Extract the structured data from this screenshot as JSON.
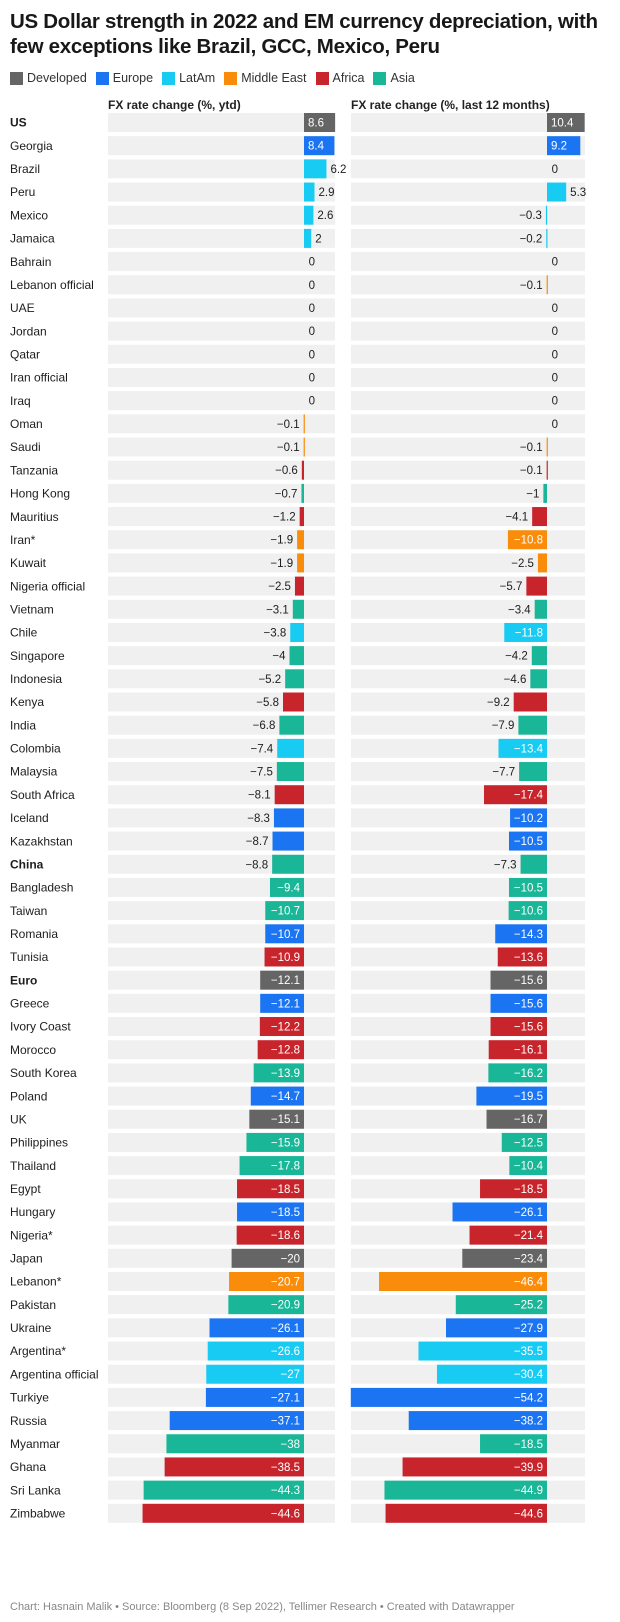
{
  "title": "US Dollar strength in 2022 and EM currency depreciation, with few exceptions like Brazil, GCC, Mexico, Peru",
  "legend": [
    {
      "name": "Developed",
      "color": "#656565"
    },
    {
      "name": "Europe",
      "color": "#1b74f1"
    },
    {
      "name": "LatAm",
      "color": "#18cbf2"
    },
    {
      "name": "Middle East",
      "color": "#f98d0b"
    },
    {
      "name": "Africa",
      "color": "#c8242b"
    },
    {
      "name": "Asia",
      "color": "#19b697"
    }
  ],
  "columns": {
    "ytd": "FX rate change (%, ytd)",
    "last12": "FX rate change (%, last 12 months)"
  },
  "source": "Chart: Hasnain Malik • Source: Bloomberg (8 Sep 2022), Tellimer Research • Created with Datawrapper",
  "chart_data": {
    "type": "bar",
    "orientation": "horizontal",
    "bold_categories": [
      "US",
      "China",
      "Euro"
    ],
    "rows": [
      {
        "country": "US",
        "group": "Developed",
        "ytd": 8.6,
        "last12": 10.4
      },
      {
        "country": "Georgia",
        "group": "Europe",
        "ytd": 8.4,
        "last12": 9.2
      },
      {
        "country": "Brazil",
        "group": "LatAm",
        "ytd": 6.2,
        "last12": 0
      },
      {
        "country": "Peru",
        "group": "LatAm",
        "ytd": 2.9,
        "last12": 5.3
      },
      {
        "country": "Mexico",
        "group": "LatAm",
        "ytd": 2.6,
        "last12": -0.3
      },
      {
        "country": "Jamaica",
        "group": "LatAm",
        "ytd": 2,
        "last12": -0.2
      },
      {
        "country": "Bahrain",
        "group": "Middle East",
        "ytd": 0,
        "last12": 0
      },
      {
        "country": "Lebanon official",
        "group": "Middle East",
        "ytd": 0,
        "last12": -0.1
      },
      {
        "country": "UAE",
        "group": "Middle East",
        "ytd": 0,
        "last12": 0
      },
      {
        "country": "Jordan",
        "group": "Middle East",
        "ytd": 0,
        "last12": 0
      },
      {
        "country": "Qatar",
        "group": "Middle East",
        "ytd": 0,
        "last12": 0
      },
      {
        "country": "Iran official",
        "group": "Middle East",
        "ytd": 0,
        "last12": 0
      },
      {
        "country": "Iraq",
        "group": "Middle East",
        "ytd": 0,
        "last12": 0
      },
      {
        "country": "Oman",
        "group": "Middle East",
        "ytd": -0.1,
        "last12": 0
      },
      {
        "country": "Saudi",
        "group": "Middle East",
        "ytd": -0.1,
        "last12": -0.1
      },
      {
        "country": "Tanzania",
        "group": "Africa",
        "ytd": -0.6,
        "last12": -0.1
      },
      {
        "country": "Hong Kong",
        "group": "Asia",
        "ytd": -0.7,
        "last12": -1
      },
      {
        "country": "Mauritius",
        "group": "Africa",
        "ytd": -1.2,
        "last12": -4.1
      },
      {
        "country": "Iran*",
        "group": "Middle East",
        "ytd": -1.9,
        "last12": -10.8
      },
      {
        "country": "Kuwait",
        "group": "Middle East",
        "ytd": -1.9,
        "last12": -2.5
      },
      {
        "country": "Nigeria official",
        "group": "Africa",
        "ytd": -2.5,
        "last12": -5.7
      },
      {
        "country": "Vietnam",
        "group": "Asia",
        "ytd": -3.1,
        "last12": -3.4
      },
      {
        "country": "Chile",
        "group": "LatAm",
        "ytd": -3.8,
        "last12": -11.8
      },
      {
        "country": "Singapore",
        "group": "Asia",
        "ytd": -4,
        "last12": -4.2
      },
      {
        "country": "Indonesia",
        "group": "Asia",
        "ytd": -5.2,
        "last12": -4.6
      },
      {
        "country": "Kenya",
        "group": "Africa",
        "ytd": -5.8,
        "last12": -9.2
      },
      {
        "country": "India",
        "group": "Asia",
        "ytd": -6.8,
        "last12": -7.9
      },
      {
        "country": "Colombia",
        "group": "LatAm",
        "ytd": -7.4,
        "last12": -13.4
      },
      {
        "country": "Malaysia",
        "group": "Asia",
        "ytd": -7.5,
        "last12": -7.7
      },
      {
        "country": "South Africa",
        "group": "Africa",
        "ytd": -8.1,
        "last12": -17.4
      },
      {
        "country": "Iceland",
        "group": "Europe",
        "ytd": -8.3,
        "last12": -10.2
      },
      {
        "country": "Kazakhstan",
        "group": "Europe",
        "ytd": -8.7,
        "last12": -10.5
      },
      {
        "country": "China",
        "group": "Asia",
        "ytd": -8.8,
        "last12": -7.3
      },
      {
        "country": "Bangladesh",
        "group": "Asia",
        "ytd": -9.4,
        "last12": -10.5
      },
      {
        "country": "Taiwan",
        "group": "Asia",
        "ytd": -10.7,
        "last12": -10.6
      },
      {
        "country": "Romania",
        "group": "Europe",
        "ytd": -10.7,
        "last12": -14.3
      },
      {
        "country": "Tunisia",
        "group": "Africa",
        "ytd": -10.9,
        "last12": -13.6
      },
      {
        "country": "Euro",
        "group": "Developed",
        "ytd": -12.1,
        "last12": -15.6
      },
      {
        "country": "Greece",
        "group": "Europe",
        "ytd": -12.1,
        "last12": -15.6
      },
      {
        "country": "Ivory Coast",
        "group": "Africa",
        "ytd": -12.2,
        "last12": -15.6
      },
      {
        "country": "Morocco",
        "group": "Africa",
        "ytd": -12.8,
        "last12": -16.1
      },
      {
        "country": "South Korea",
        "group": "Asia",
        "ytd": -13.9,
        "last12": -16.2
      },
      {
        "country": "Poland",
        "group": "Europe",
        "ytd": -14.7,
        "last12": -19.5
      },
      {
        "country": "UK",
        "group": "Developed",
        "ytd": -15.1,
        "last12": -16.7
      },
      {
        "country": "Philippines",
        "group": "Asia",
        "ytd": -15.9,
        "last12": -12.5
      },
      {
        "country": "Thailand",
        "group": "Asia",
        "ytd": -17.8,
        "last12": -10.4
      },
      {
        "country": "Egypt",
        "group": "Africa",
        "ytd": -18.5,
        "last12": -18.5
      },
      {
        "country": "Hungary",
        "group": "Europe",
        "ytd": -18.5,
        "last12": -26.1
      },
      {
        "country": "Nigeria*",
        "group": "Africa",
        "ytd": -18.6,
        "last12": -21.4
      },
      {
        "country": "Japan",
        "group": "Developed",
        "ytd": -20,
        "last12": -23.4
      },
      {
        "country": "Lebanon*",
        "group": "Middle East",
        "ytd": -20.7,
        "last12": -46.4
      },
      {
        "country": "Pakistan",
        "group": "Asia",
        "ytd": -20.9,
        "last12": -25.2
      },
      {
        "country": "Ukraine",
        "group": "Europe",
        "ytd": -26.1,
        "last12": -27.9
      },
      {
        "country": "Argentina*",
        "group": "LatAm",
        "ytd": -26.6,
        "last12": -35.5
      },
      {
        "country": "Argentina official",
        "group": "LatAm",
        "ytd": -27,
        "last12": -30.4
      },
      {
        "country": "Turkiye",
        "group": "Europe",
        "ytd": -27.1,
        "last12": -54.2
      },
      {
        "country": "Russia",
        "group": "Europe",
        "ytd": -37.1,
        "last12": -38.2
      },
      {
        "country": "Myanmar",
        "group": "Asia",
        "ytd": -38,
        "last12": -18.5
      },
      {
        "country": "Ghana",
        "group": "Africa",
        "ytd": -38.5,
        "last12": -39.9
      },
      {
        "country": "Sri Lanka",
        "group": "Asia",
        "ytd": -44.3,
        "last12": -44.9
      },
      {
        "country": "Zimbabwe",
        "group": "Africa",
        "ytd": -44.6,
        "last12": -44.6
      }
    ]
  }
}
